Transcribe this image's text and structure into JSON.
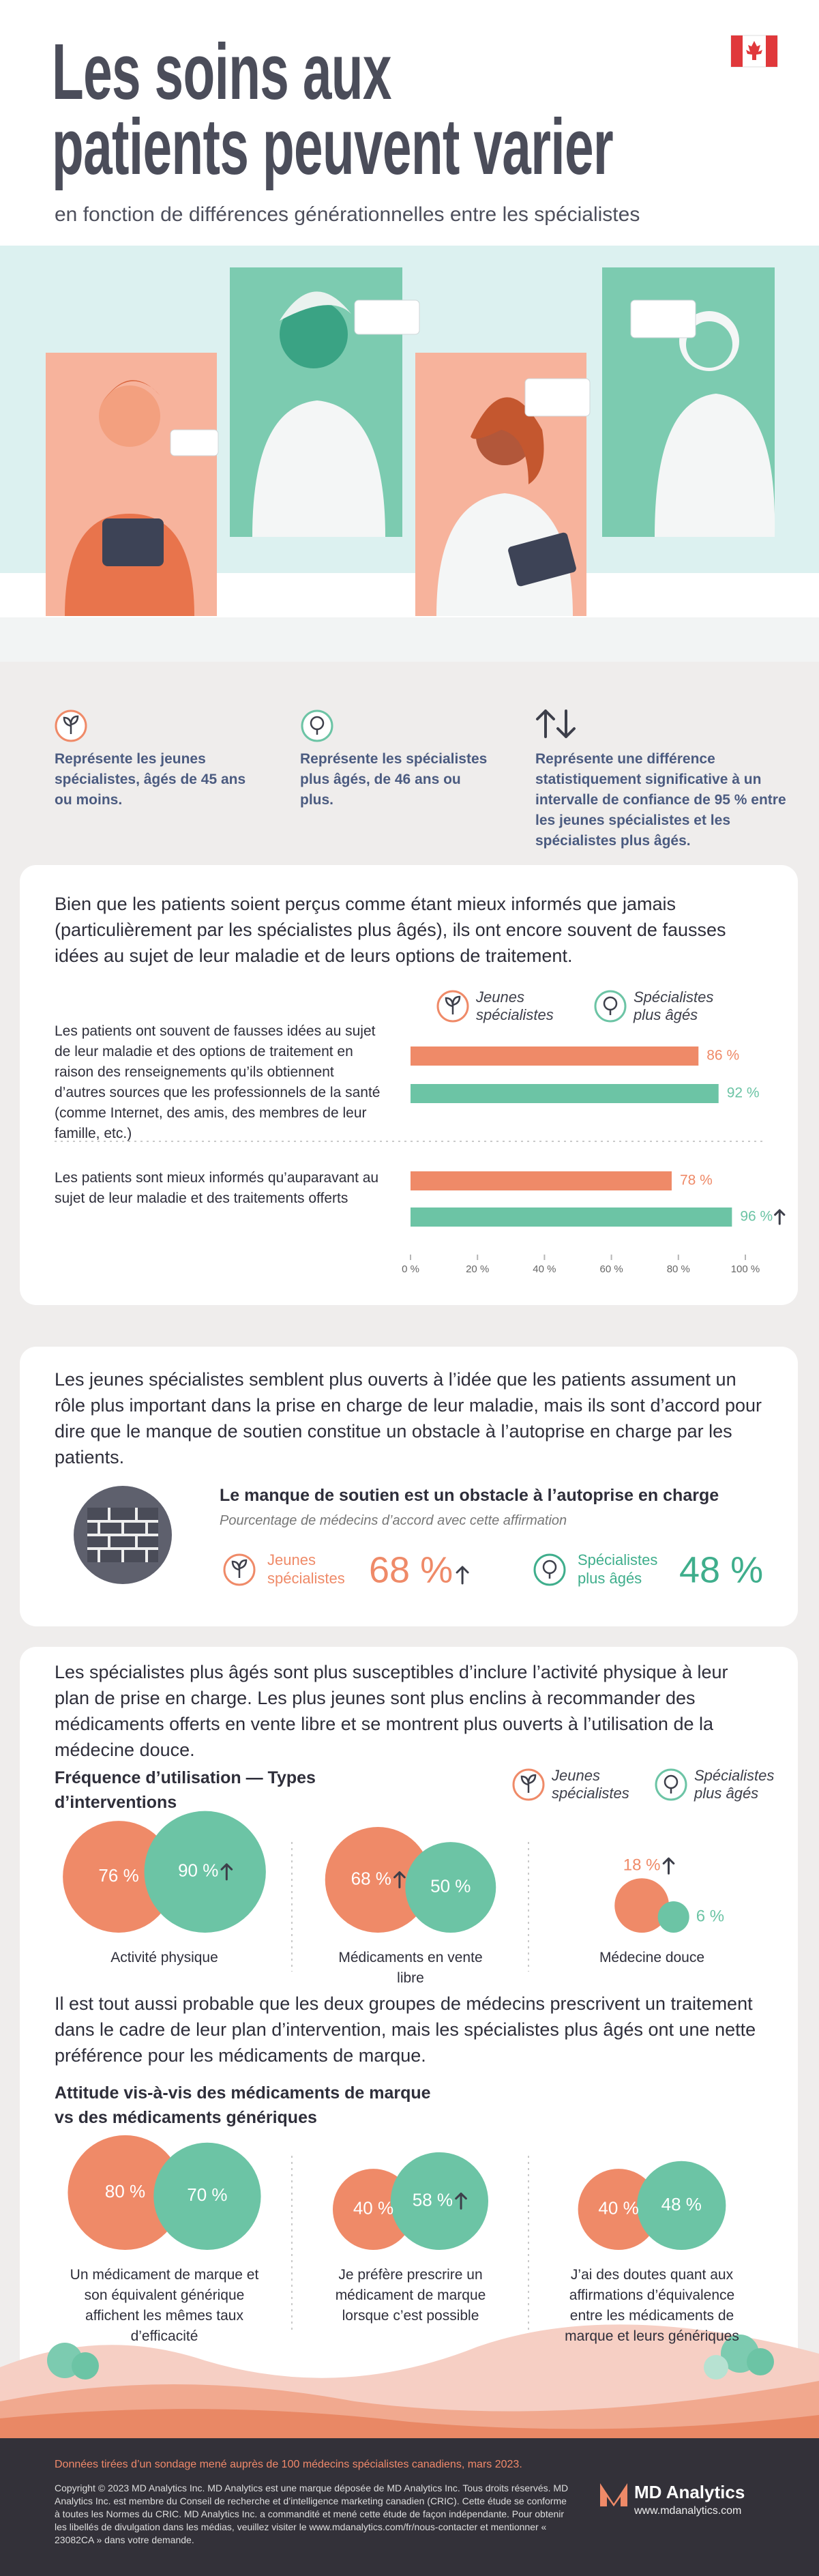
{
  "header": {
    "title": "Les soins aux\npatients peuvent varier",
    "subtitle": "en fonction de différences générationnelles entre les spécialistes"
  },
  "legend": {
    "items": [
      "Représente les jeunes spécialistes, âgés de 45 ans ou moins.",
      "Représente les spécialistes plus âgés, de 46 ans ou plus.",
      "Représente une différence statistiquement significative à un intervalle de confiance de 95 % entre les jeunes spécialistes et les spécialistes plus âgés."
    ]
  },
  "paragraphs": [
    "Bien que les patients soient perçus comme étant mieux informés que jamais (particulièrement par les spécialistes plus âgés), ils ont encore souvent de fausses idées au sujet de leur maladie et de leurs options de traitement.",
    "Les jeunes spécialistes semblent plus ouverts à l’idée que les patients assument un rôle plus important dans la prise en charge de leur maladie, mais ils sont d’accord pour dire que le manque de soutien constitue un obstacle à l’autoprise en charge par les patients.",
    "Les spécialistes plus âgés sont plus susceptibles d’inclure l’activité physique à leur plan de prise en charge. Les plus jeunes sont plus enclins à recommander des médicaments offerts en vente libre et se montrent plus ouverts à l’utilisation de la médecine douce.",
    "Il est tout aussi probable que les deux groupes de médecins prescrivent un traitement dans le cadre de leur plan d’intervention, mais les spécialistes plus âgés ont une nette préférence pour les médicaments de marque."
  ],
  "chart_data": [
    {
      "type": "bar",
      "categories": [
        "Les patients ont souvent de fausses idées au sujet de leur maladie et des options de traitement en raison des renseignements qu’ils obtiennent d’autres sources que les professionnels de la santé (comme Internet, des amis, des membres de leur famille, etc.)",
        "Les patients sont mieux informés qu’auparavant au sujet de leur maladie et des traitements offerts"
      ],
      "series": [
        {
          "name": "Jeunes spécialistes",
          "color": "#ef8a68",
          "values": [
            86,
            78
          ],
          "value_labels": [
            "86 %",
            "78 %"
          ],
          "significant": [
            false,
            false
          ]
        },
        {
          "name": "Spécialistes plus âgés",
          "color": "#6cc4a5",
          "values": [
            92,
            96
          ],
          "value_labels": [
            "92 %",
            "96 %"
          ],
          "significant": [
            false,
            true
          ]
        }
      ],
      "xlim": [
        0,
        100
      ],
      "xticks": [
        {
          "value": 0,
          "label": "0 %"
        },
        {
          "value": 20,
          "label": "20 %"
        },
        {
          "value": 40,
          "label": "40 %"
        },
        {
          "value": 60,
          "label": "60 %"
        },
        {
          "value": 80,
          "label": "80 %"
        },
        {
          "value": 100,
          "label": "100 %"
        }
      ]
    },
    {
      "type": "stat",
      "title": "Le manque de soutien est un obstacle à l’autoprise en charge",
      "subtitle": "Pourcentage de médecins d’accord avec cette affirmation",
      "series": [
        {
          "name": "Jeunes spécialistes",
          "color": "#ef8a68",
          "values": [
            68
          ],
          "value_labels": [
            "68 %"
          ],
          "significant": [
            true
          ]
        },
        {
          "name": "Spécialistes plus âgés",
          "color": "#3fae8c",
          "values": [
            48
          ],
          "value_labels": [
            "48 %"
          ],
          "significant": [
            false
          ]
        }
      ]
    },
    {
      "type": "bubble",
      "title": "Fréquence d’utilisation — Types d’interventions",
      "categories": [
        "Activité physique",
        "Médicaments en vente libre",
        "Médecine douce"
      ],
      "series": [
        {
          "name": "Jeunes spécialistes",
          "color": "#ef8a68",
          "values": [
            76,
            68,
            18
          ],
          "value_labels": [
            "76 %",
            "68 %",
            "18 %"
          ],
          "significant": [
            false,
            true,
            true
          ]
        },
        {
          "name": "Spécialistes plus âgés",
          "color": "#6cc4a5",
          "values": [
            90,
            50,
            6
          ],
          "value_labels": [
            "90 %",
            "50 %",
            "6 %"
          ],
          "significant": [
            true,
            false,
            false
          ]
        }
      ]
    },
    {
      "type": "bubble",
      "title": "Attitude vis-à-vis des médicaments de marque vs des médicaments génériques",
      "categories": [
        "Un médicament de marque et son équivalent générique affichent les mêmes taux d’efficacité",
        "Je préfère prescrire un médicament de marque lorsque c’est possible",
        "J’ai des doutes quant aux affirmations d’équivalence entre les médicaments de marque et leurs génériques"
      ],
      "series": [
        {
          "color": "#ef8a68",
          "values": [
            80,
            40,
            40
          ],
          "value_labels": [
            "80 %",
            "40 %",
            "40 %"
          ],
          "significant": [
            false,
            false,
            false
          ]
        },
        {
          "color": "#6cc4a5",
          "values": [
            70,
            58,
            48
          ],
          "value_labels": [
            "70 %",
            "58 %",
            "48 %"
          ],
          "significant": [
            false,
            true,
            false
          ]
        }
      ]
    }
  ],
  "footer": {
    "source": "Données tirées d’un sondage mené auprès de 100 médecins spécialistes canadiens, mars 2023.",
    "copyright": "Copyright © 2023 MD Analytics Inc. MD Analytics est une marque déposée de MD Analytics Inc. Tous droits réservés. MD Analytics Inc. est membre du Conseil de recherche et d’intelligence marketing canadien (CRIC). Cette étude se conforme à toutes les Normes du CRIC. MD Analytics Inc. a commandité et mené cette étude de façon indépendante. Pour obtenir les libellés de divulgation dans les médias, veuillez visiter le www.mdanalytics.com/fr/nous-contacter et mentionner « 23082CA » dans votre demande.",
    "brand": "MD Analytics",
    "website": "www.mdanalytics.com"
  }
}
